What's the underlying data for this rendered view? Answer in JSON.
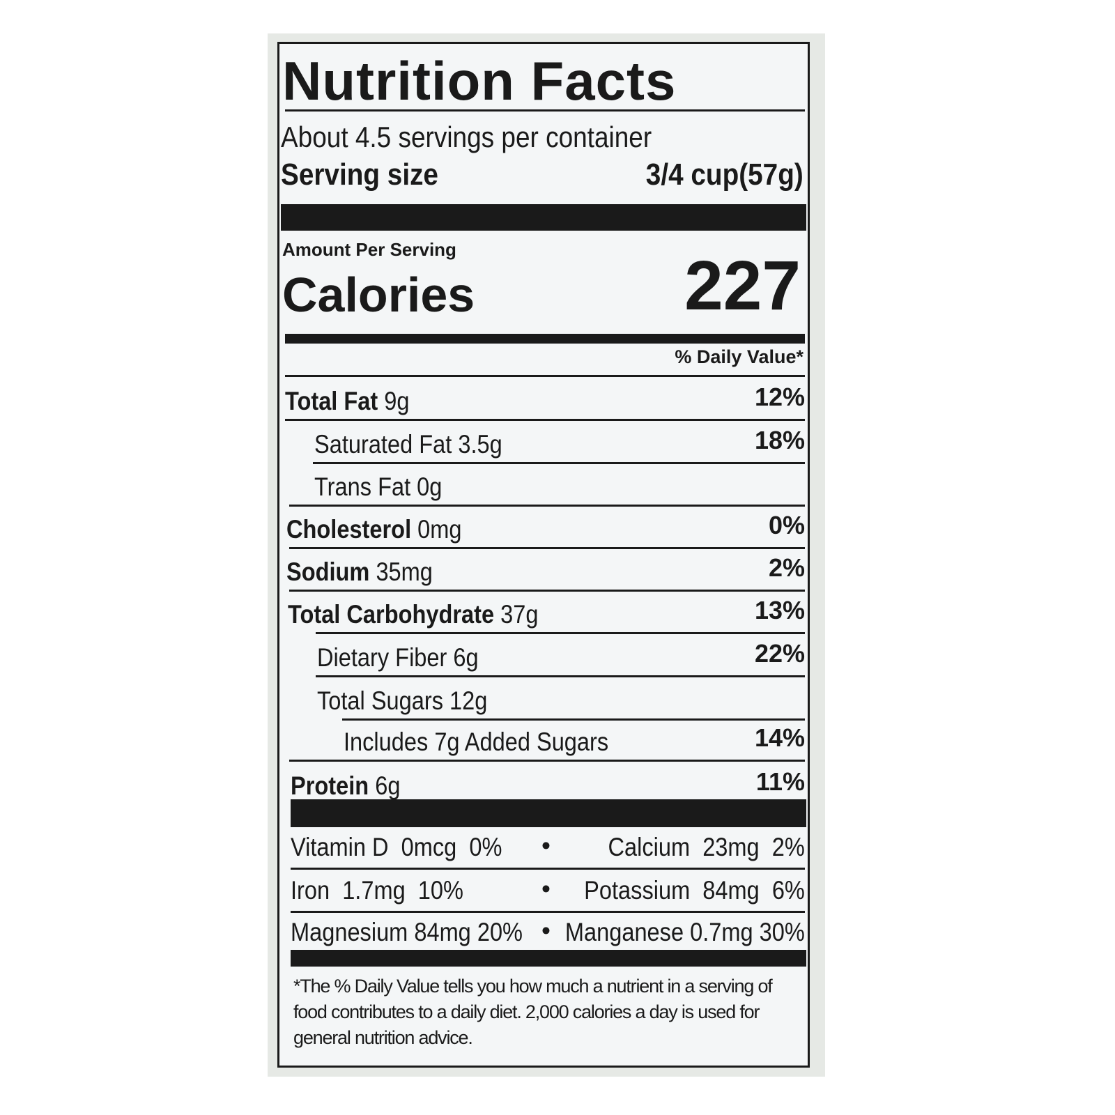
{
  "title": "Nutrition Facts",
  "servings_per_container": "About 4.5 servings per container",
  "serving_size_label": "Serving size",
  "serving_size_value": "3/4 cup(57g)",
  "amount_per_serving": "Amount Per Serving",
  "calories_label": "Calories",
  "calories_value": "227",
  "daily_value_header": "% Daily Value*",
  "nutrients": [
    {
      "name": "Total Fat",
      "amount": "9g",
      "dv": "12%"
    },
    {
      "name": "Saturated Fat",
      "amount": "3.5g",
      "dv": "18%"
    },
    {
      "name": "Trans Fat",
      "amount": "0g",
      "dv": ""
    },
    {
      "name": "Cholesterol",
      "amount": "0mg",
      "dv": "0%"
    },
    {
      "name": "Sodium",
      "amount": "35mg",
      "dv": "2%"
    },
    {
      "name": "Total Carbohydrate",
      "amount": "37g",
      "dv": "13%"
    },
    {
      "name": "Dietary Fiber",
      "amount": "6g",
      "dv": "22%"
    },
    {
      "name": "Total Sugars",
      "amount": "12g",
      "dv": ""
    },
    {
      "name": "Includes 7g Added Sugars",
      "amount": "",
      "dv": "14%"
    },
    {
      "name": "Protein",
      "amount": "6g",
      "dv": "11%"
    }
  ],
  "micronutrients": [
    {
      "left": "Vitamin D  0mcg  0%",
      "right": "Calcium  23mg  2%"
    },
    {
      "left": "Iron  1.7mg  10%",
      "right": "Potassium  84mg  6%"
    },
    {
      "left": "Magnesium 84mg 20%",
      "right": "Manganese 0.7mg 30%"
    }
  ],
  "bullet": "•",
  "footnote": "*The % Daily Value tells you how much a nutrient in a serving of food contributes to a daily diet. 2,000 calories a day is used for general nutrition advice."
}
